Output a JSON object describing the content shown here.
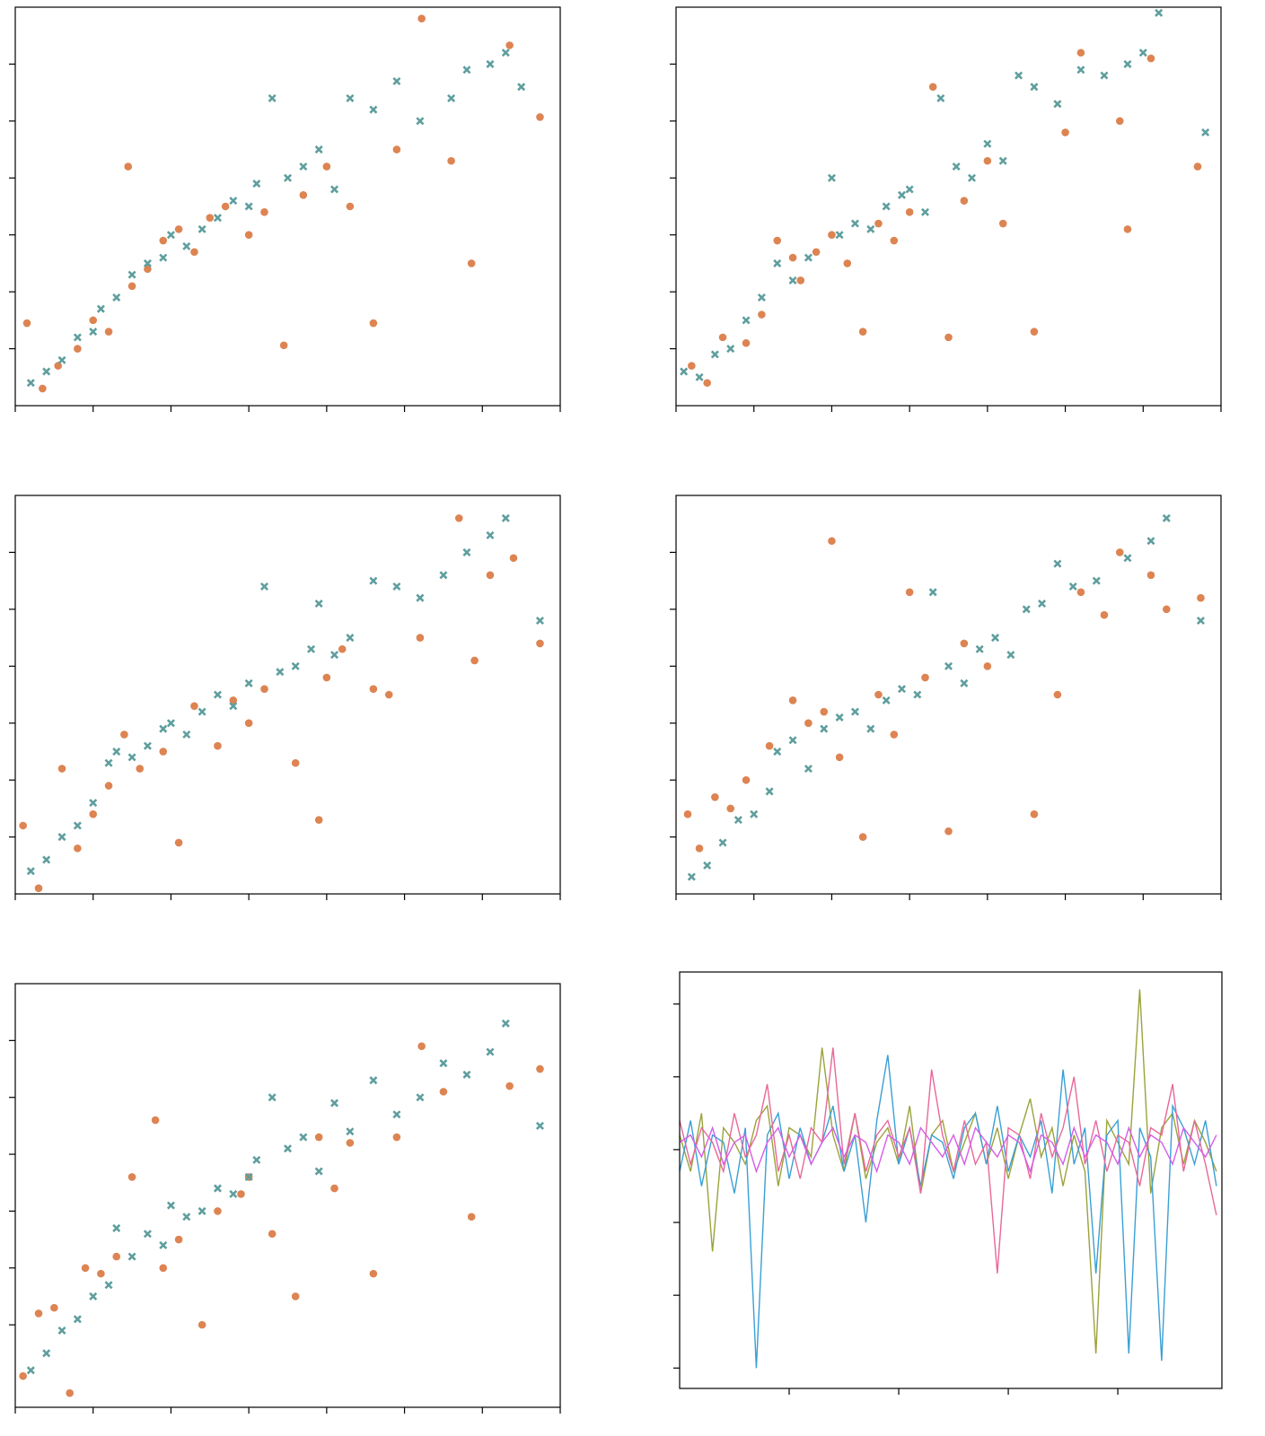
{
  "chart_data": [
    {
      "type": "scatter",
      "xlim": [
        0,
        7
      ],
      "ylim": [
        0,
        7
      ],
      "xticks": [
        0,
        1,
        2,
        3,
        4,
        5,
        6,
        7
      ],
      "yticks": [
        1,
        2,
        3,
        4,
        5,
        6
      ],
      "series": [
        {
          "color": "#dd8452",
          "marker": "o",
          "x": [
            0.15,
            0.35,
            0.55,
            0.8,
            1.0,
            1.2,
            1.45,
            1.5,
            1.7,
            1.9,
            2.1,
            2.3,
            2.5,
            2.7,
            3.0,
            3.2,
            3.45,
            3.7,
            4.0,
            4.3,
            4.6,
            4.9,
            5.22,
            5.6,
            5.86,
            6.35,
            6.74
          ],
          "values": [
            1.45,
            0.3,
            0.7,
            1.0,
            1.5,
            1.3,
            4.2,
            2.1,
            2.4,
            2.9,
            3.1,
            2.7,
            3.3,
            3.5,
            3.0,
            3.4,
            1.06,
            3.7,
            4.2,
            3.5,
            1.45,
            4.5,
            6.8,
            4.3,
            2.5,
            6.33,
            5.07
          ]
        },
        {
          "color": "#5f9e9e",
          "marker": "x",
          "x": [
            0.2,
            0.4,
            0.6,
            0.8,
            1.0,
            1.1,
            1.3,
            1.5,
            1.7,
            1.9,
            2.0,
            2.2,
            2.4,
            2.6,
            2.8,
            3.0,
            3.1,
            3.3,
            3.5,
            3.7,
            3.9,
            4.1,
            4.3,
            4.6,
            4.9,
            5.2,
            5.6,
            5.8,
            6.1,
            6.3,
            6.5
          ],
          "values": [
            0.4,
            0.6,
            0.8,
            1.2,
            1.3,
            1.7,
            1.9,
            2.3,
            2.5,
            2.6,
            3.0,
            2.8,
            3.1,
            3.3,
            3.6,
            3.5,
            3.9,
            5.4,
            4.0,
            4.2,
            4.5,
            3.8,
            5.4,
            5.2,
            5.7,
            5.0,
            5.4,
            5.9,
            6.0,
            6.2,
            5.6
          ]
        }
      ]
    },
    {
      "type": "scatter",
      "xlim": [
        0,
        7
      ],
      "ylim": [
        0,
        7
      ],
      "xticks": [
        0,
        1,
        2,
        3,
        4,
        5,
        6,
        7
      ],
      "yticks": [
        1,
        2,
        3,
        4,
        5,
        6
      ],
      "series": [
        {
          "color": "#dd8452",
          "marker": "o",
          "x": [
            0.2,
            0.4,
            0.6,
            0.9,
            1.1,
            1.3,
            1.5,
            1.6,
            1.8,
            2.0,
            2.2,
            2.4,
            2.6,
            2.8,
            3.0,
            3.3,
            3.5,
            3.7,
            4.0,
            4.2,
            4.6,
            5.0,
            5.2,
            5.7,
            5.8,
            6.1,
            6.7
          ],
          "values": [
            0.7,
            0.4,
            1.2,
            1.1,
            1.6,
            2.9,
            2.6,
            2.2,
            2.7,
            3.0,
            2.5,
            1.3,
            3.2,
            2.9,
            3.4,
            5.6,
            1.2,
            3.6,
            4.3,
            3.2,
            1.3,
            4.8,
            6.2,
            5.0,
            3.1,
            6.1,
            4.2
          ]
        },
        {
          "color": "#5f9e9e",
          "marker": "x",
          "x": [
            0.1,
            0.3,
            0.5,
            0.7,
            0.9,
            1.1,
            1.3,
            1.5,
            1.7,
            2.0,
            2.1,
            2.3,
            2.5,
            2.7,
            2.9,
            3.0,
            3.2,
            3.4,
            3.6,
            3.8,
            4.0,
            4.2,
            4.4,
            4.6,
            4.9,
            5.2,
            5.5,
            5.8,
            6.0,
            6.2,
            6.8
          ],
          "values": [
            0.6,
            0.5,
            0.9,
            1.0,
            1.5,
            1.9,
            2.5,
            2.2,
            2.6,
            4.0,
            3.0,
            3.2,
            3.1,
            3.5,
            3.7,
            3.8,
            3.4,
            5.4,
            4.2,
            4.0,
            4.6,
            4.3,
            5.8,
            5.6,
            5.3,
            5.9,
            5.8,
            6.0,
            6.2,
            6.9,
            4.8
          ]
        }
      ]
    },
    {
      "type": "scatter",
      "xlim": [
        0,
        7
      ],
      "ylim": [
        0,
        7
      ],
      "xticks": [
        0,
        1,
        2,
        3,
        4,
        5,
        6,
        7
      ],
      "yticks": [
        1,
        2,
        3,
        4,
        5,
        6
      ],
      "series": [
        {
          "color": "#dd8452",
          "marker": "o",
          "x": [
            0.1,
            0.3,
            0.6,
            0.8,
            1.0,
            1.2,
            1.4,
            1.6,
            1.9,
            2.1,
            2.3,
            2.6,
            2.8,
            3.0,
            3.2,
            3.6,
            3.9,
            4.0,
            4.2,
            4.6,
            4.8,
            5.2,
            5.7,
            5.9,
            6.1,
            6.4,
            6.74
          ],
          "values": [
            1.2,
            0.1,
            2.2,
            0.8,
            1.4,
            1.9,
            2.8,
            2.2,
            2.5,
            0.9,
            3.3,
            2.6,
            3.4,
            3.0,
            3.6,
            2.3,
            1.3,
            3.8,
            4.3,
            3.6,
            3.5,
            4.5,
            6.6,
            4.1,
            5.6,
            5.9,
            4.4
          ]
        },
        {
          "color": "#5f9e9e",
          "marker": "x",
          "x": [
            0.2,
            0.4,
            0.6,
            0.8,
            1.0,
            1.2,
            1.3,
            1.5,
            1.7,
            1.9,
            2.0,
            2.2,
            2.4,
            2.6,
            2.8,
            3.0,
            3.2,
            3.4,
            3.6,
            3.8,
            3.9,
            4.1,
            4.3,
            4.6,
            4.9,
            5.2,
            5.5,
            5.8,
            6.1,
            6.3,
            6.74
          ],
          "values": [
            0.4,
            0.6,
            1.0,
            1.2,
            1.6,
            2.3,
            2.5,
            2.4,
            2.6,
            2.9,
            3.0,
            2.8,
            3.2,
            3.5,
            3.3,
            3.7,
            5.4,
            3.9,
            4.0,
            4.3,
            5.1,
            4.2,
            4.5,
            5.5,
            5.4,
            5.2,
            5.6,
            6.0,
            6.3,
            6.6,
            4.8
          ]
        }
      ]
    },
    {
      "type": "scatter",
      "xlim": [
        0,
        7
      ],
      "ylim": [
        0,
        7
      ],
      "xticks": [
        0,
        1,
        2,
        3,
        4,
        5,
        6,
        7
      ],
      "yticks": [
        1,
        2,
        3,
        4,
        5,
        6
      ],
      "series": [
        {
          "color": "#dd8452",
          "marker": "o",
          "x": [
            0.15,
            0.3,
            0.5,
            0.7,
            0.9,
            1.2,
            1.5,
            1.7,
            1.9,
            2.0,
            2.1,
            2.4,
            2.6,
            2.8,
            3.0,
            3.2,
            3.5,
            3.7,
            4.0,
            4.6,
            4.9,
            5.2,
            5.5,
            5.7,
            6.1,
            6.3,
            6.74
          ],
          "values": [
            1.4,
            0.8,
            1.7,
            1.5,
            2.0,
            2.6,
            3.4,
            3.0,
            3.2,
            6.2,
            2.4,
            1.0,
            3.5,
            2.8,
            5.3,
            3.8,
            1.1,
            4.4,
            4.0,
            1.4,
            3.5,
            5.3,
            4.9,
            6.0,
            5.6,
            5.0,
            5.2
          ]
        },
        {
          "color": "#5f9e9e",
          "marker": "x",
          "x": [
            0.2,
            0.4,
            0.6,
            0.8,
            1.0,
            1.2,
            1.3,
            1.5,
            1.7,
            1.9,
            2.1,
            2.3,
            2.5,
            2.7,
            2.9,
            3.1,
            3.3,
            3.5,
            3.7,
            3.9,
            4.1,
            4.3,
            4.5,
            4.7,
            4.9,
            5.1,
            5.4,
            5.8,
            6.1,
            6.3,
            6.74
          ],
          "values": [
            0.3,
            0.5,
            0.9,
            1.3,
            1.4,
            1.8,
            2.5,
            2.7,
            2.2,
            2.9,
            3.1,
            3.2,
            2.9,
            3.4,
            3.6,
            3.5,
            5.3,
            4.0,
            3.7,
            4.3,
            4.5,
            4.2,
            5.0,
            5.1,
            5.8,
            5.4,
            5.5,
            5.9,
            6.2,
            6.6,
            4.8
          ]
        }
      ]
    },
    {
      "type": "scatter",
      "xlim": [
        0,
        7
      ],
      "ylim": [
        -0.45,
        7
      ],
      "xticks": [
        0,
        1,
        2,
        3,
        4,
        5,
        6,
        7
      ],
      "yticks": [
        1,
        2,
        3,
        4,
        5,
        6
      ],
      "series": [
        {
          "color": "#dd8452",
          "marker": "o",
          "x": [
            0.1,
            0.3,
            0.5,
            0.7,
            0.9,
            1.1,
            1.3,
            1.5,
            1.8,
            1.9,
            2.1,
            2.4,
            2.6,
            2.9,
            3.0,
            3.3,
            3.6,
            3.9,
            4.1,
            4.3,
            4.6,
            4.9,
            5.22,
            5.5,
            5.86,
            6.35,
            6.74
          ],
          "values": [
            0.1,
            1.2,
            1.3,
            -0.2,
            2.0,
            1.9,
            2.2,
            3.6,
            4.6,
            2.0,
            2.5,
            1.0,
            3.0,
            3.3,
            3.6,
            2.6,
            1.5,
            4.3,
            3.4,
            4.2,
            1.9,
            4.3,
            5.9,
            5.1,
            2.9,
            5.2,
            5.5
          ]
        },
        {
          "color": "#5f9e9e",
          "marker": "x",
          "x": [
            0.2,
            0.4,
            0.6,
            0.8,
            1.0,
            1.2,
            1.3,
            1.5,
            1.7,
            1.9,
            2.0,
            2.2,
            2.4,
            2.6,
            2.8,
            3.0,
            3.1,
            3.3,
            3.5,
            3.7,
            3.9,
            4.1,
            4.3,
            4.6,
            4.9,
            5.2,
            5.5,
            5.8,
            6.1,
            6.3,
            6.74
          ],
          "values": [
            0.2,
            0.5,
            0.9,
            1.1,
            1.5,
            1.7,
            2.7,
            2.2,
            2.6,
            2.4,
            3.1,
            2.9,
            3.0,
            3.4,
            3.3,
            3.6,
            3.9,
            5.0,
            4.1,
            4.3,
            3.7,
            4.9,
            4.4,
            5.3,
            4.7,
            5.0,
            5.6,
            5.4,
            5.8,
            6.3,
            4.5
          ]
        }
      ]
    },
    {
      "type": "line",
      "xlim": [
        0,
        4.95
      ],
      "ylim": [
        -3.28,
        2.44
      ],
      "xticks": [
        1,
        2,
        3,
        4
      ],
      "yticks": [
        -3,
        -2,
        -1,
        0,
        1,
        2
      ],
      "x": [
        0,
        0.1,
        0.2,
        0.3,
        0.4,
        0.5,
        0.6,
        0.7,
        0.8,
        0.9,
        1,
        1.1,
        1.2,
        1.3,
        1.4,
        1.5,
        1.6,
        1.7,
        1.8,
        1.9,
        2,
        2.1,
        2.2,
        2.3,
        2.4,
        2.5,
        2.6,
        2.7,
        2.8,
        2.9,
        3,
        3.1,
        3.2,
        3.3,
        3.4,
        3.5,
        3.6,
        3.7,
        3.8,
        3.9,
        4,
        4.1,
        4.2,
        4.3,
        4.4,
        4.5,
        4.6,
        4.7,
        4.8,
        4.9
      ],
      "series": [
        {
          "color": "#9aa33a",
          "values": [
            0.2,
            -0.3,
            0.5,
            -1.4,
            0.3,
            0.1,
            -0.2,
            0.4,
            0.6,
            -0.5,
            0.3,
            0.2,
            -0.1,
            1.4,
            0.2,
            -0.3,
            0.5,
            -0.4,
            0.1,
            0.3,
            -0.2,
            0.6,
            -0.6,
            0.2,
            0.4,
            -0.3,
            0.1,
            0.5,
            -0.2,
            0.3,
            -0.4,
            0.2,
            0.7,
            -0.1,
            0.3,
            -0.5,
            0.2,
            -0.3,
            -2.8,
            0.4,
            0.1,
            -0.2,
            2.2,
            -0.6,
            0.3,
            0.5,
            -0.2,
            0.4,
            0.1,
            -0.3
          ]
        },
        {
          "color": "#3a9fd6",
          "values": [
            -0.3,
            0.4,
            -0.5,
            0.2,
            0.1,
            -0.6,
            0.3,
            -3.0,
            0.2,
            0.5,
            -0.4,
            0.3,
            -0.2,
            0.1,
            0.6,
            -0.3,
            0.2,
            -1.0,
            0.4,
            1.3,
            -0.2,
            0.3,
            -0.5,
            0.2,
            0.1,
            -0.4,
            0.3,
            0.5,
            -0.2,
            0.6,
            -0.3,
            0.2,
            -0.1,
            0.4,
            -0.6,
            1.1,
            -0.2,
            0.3,
            -1.7,
            0.2,
            0.4,
            -2.8,
            0.3,
            -0.1,
            -2.9,
            0.6,
            0.3,
            -0.2,
            0.4,
            -0.5
          ]
        },
        {
          "color": "#e8689a",
          "values": [
            0.4,
            -0.2,
            0.3,
            0.1,
            -0.3,
            0.5,
            -0.1,
            0.2,
            0.9,
            -0.3,
            0.2,
            -0.4,
            0.3,
            0.1,
            1.4,
            -0.2,
            0.5,
            -0.3,
            0.2,
            0.4,
            -0.1,
            0.3,
            -0.6,
            1.1,
            0.2,
            -0.3,
            0.4,
            -0.2,
            0.1,
            -1.7,
            0.3,
            0.2,
            -0.4,
            0.5,
            -0.1,
            0.3,
            1.0,
            -0.2,
            0.4,
            -0.3,
            0.2,
            0.1,
            -0.5,
            0.3,
            0.2,
            0.9,
            -0.3,
            0.4,
            -0.2,
            -0.9
          ]
        },
        {
          "color": "#d65ce8",
          "values": [
            0.1,
            0.2,
            -0.1,
            0.3,
            -0.2,
            0.1,
            0.2,
            -0.3,
            0.1,
            0.3,
            -0.1,
            0.2,
            -0.2,
            0.1,
            0.3,
            -0.1,
            0.2,
            0.1,
            -0.3,
            0.2,
            0.1,
            -0.2,
            0.3,
            0.1,
            -0.1,
            0.2,
            -0.2,
            0.3,
            0.1,
            -0.1,
            0.2,
            0.1,
            -0.3,
            0.2,
            0.1,
            -0.2,
            0.3,
            -0.1,
            0.2,
            0.1,
            -0.2,
            0.3,
            -0.1,
            0.2,
            0.1,
            -0.2,
            0.3,
            0.1,
            -0.1,
            0.2
          ]
        }
      ]
    }
  ]
}
